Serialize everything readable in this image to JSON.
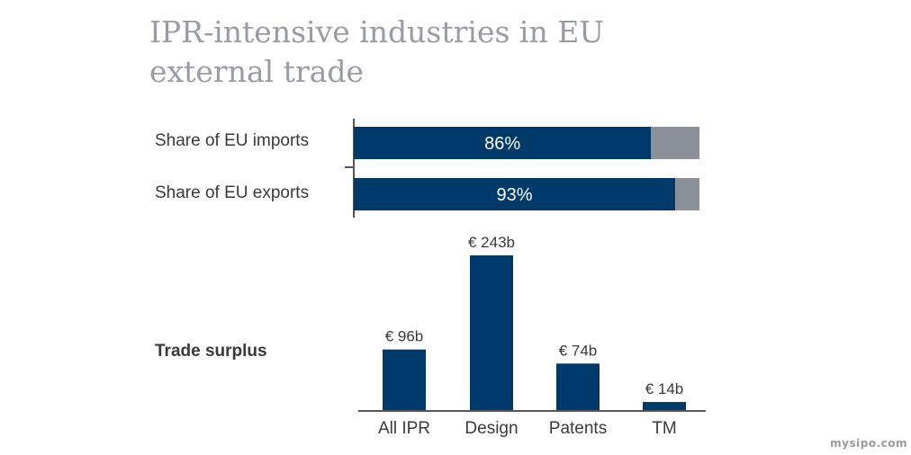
{
  "title_lines": [
    "IPR-intensive industries in EU",
    "external trade"
  ],
  "watermark": "mysipo.com",
  "colors": {
    "primary": "#003a6b",
    "secondary": "#8a8f98",
    "axis": "#555555",
    "text": "#3a3a3a"
  },
  "chart_data": [
    {
      "type": "bar",
      "orientation": "horizontal",
      "stacked": true,
      "categories": [
        "Share of EU imports",
        "Share of EU exports"
      ],
      "series": [
        {
          "values": [
            86,
            93
          ],
          "labels": [
            "86%",
            "93%"
          ],
          "color": "#003a6b"
        },
        {
          "values": [
            14,
            7
          ],
          "color": "#8a8f98"
        }
      ],
      "xlim": [
        0,
        100
      ]
    },
    {
      "type": "bar",
      "title": "Trade surplus",
      "categories": [
        "All IPR",
        "Design",
        "Patents",
        "TM"
      ],
      "values": [
        96,
        243,
        74,
        14
      ],
      "labels": [
        "€ 96b",
        "€ 243b",
        "€ 74b",
        "€ 14b"
      ],
      "color": "#003a6b"
    }
  ]
}
